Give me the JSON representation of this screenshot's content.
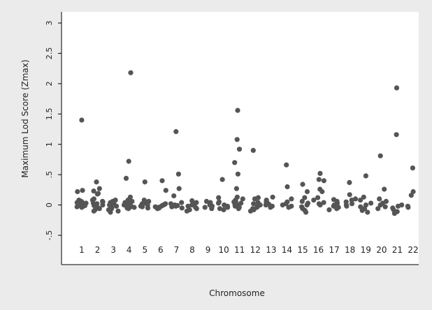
{
  "chart_data": {
    "type": "scatter",
    "xlabel": "Chromosome",
    "ylabel": "Maximum Lod Score (Zmax)",
    "ylim": [
      -0.5,
      3
    ],
    "yticks": [
      3,
      2.5,
      2,
      1.5,
      1,
      0.5,
      0,
      -0.5
    ],
    "ytick_labels": [
      "3",
      "2.5",
      "2",
      "1.5",
      "1",
      ".5",
      "0",
      "-.5"
    ],
    "categories": [
      "1",
      "2",
      "3",
      "4",
      "5",
      "6",
      "7",
      "8",
      "9",
      "10",
      "11",
      "12",
      "13",
      "14",
      "15",
      "16",
      "17",
      "18",
      "19",
      "20",
      "21",
      "22"
    ],
    "grid": false,
    "point_color": "#555555",
    "series": [
      {
        "chromosome": 1,
        "values": [
          1.4,
          0.24,
          0.22,
          0.08,
          0.06,
          0.05,
          0.04,
          0.03,
          0.02,
          0.01,
          0.0,
          -0.01,
          -0.02,
          -0.03,
          -0.04
        ]
      },
      {
        "chromosome": 2,
        "values": [
          0.38,
          0.27,
          0.23,
          0.19,
          0.18,
          0.1,
          0.08,
          0.06,
          0.05,
          0.03,
          0.02,
          0.0,
          -0.01,
          -0.03,
          -0.05,
          -0.06,
          -0.08,
          -0.1
        ]
      },
      {
        "chromosome": 3,
        "values": [
          0.08,
          0.06,
          0.04,
          0.03,
          0.02,
          0.0,
          -0.02,
          -0.04,
          -0.06,
          -0.08,
          -0.1,
          -0.12
        ]
      },
      {
        "chromosome": 4,
        "values": [
          2.18,
          0.72,
          0.44,
          0.13,
          0.08,
          0.06,
          0.05,
          0.04,
          0.03,
          0.02,
          0.01,
          0.0,
          -0.01,
          -0.02,
          -0.03,
          -0.04,
          -0.05,
          -0.06
        ]
      },
      {
        "chromosome": 5,
        "values": [
          0.38,
          0.08,
          0.06,
          0.04,
          0.03,
          0.02,
          0.01,
          0.0,
          -0.02,
          -0.03,
          -0.05
        ]
      },
      {
        "chromosome": 6,
        "values": [
          0.4,
          0.24,
          0.02,
          0.01,
          0.0,
          -0.01,
          -0.02,
          -0.03,
          -0.04,
          -0.05,
          -0.06
        ]
      },
      {
        "chromosome": 7,
        "values": [
          1.21,
          0.51,
          0.27,
          0.15,
          0.04,
          0.02,
          0.0,
          -0.01,
          -0.02,
          -0.03,
          -0.05
        ]
      },
      {
        "chromosome": 8,
        "values": [
          0.07,
          0.04,
          0.02,
          0.0,
          -0.02,
          -0.04,
          -0.06,
          -0.08,
          -0.1
        ]
      },
      {
        "chromosome": 9,
        "values": [
          0.06,
          0.04,
          0.02,
          0.0,
          -0.02,
          -0.04,
          -0.06
        ]
      },
      {
        "chromosome": 10,
        "values": [
          0.42,
          0.12,
          0.05,
          0.03,
          0.0,
          -0.02,
          -0.04,
          -0.06,
          -0.08
        ]
      },
      {
        "chromosome": 11,
        "values": [
          1.56,
          1.08,
          0.92,
          0.7,
          0.51,
          0.27,
          0.13,
          0.1,
          0.08,
          0.06,
          0.05,
          0.03,
          0.01,
          0.0,
          -0.02,
          -0.04,
          -0.06
        ]
      },
      {
        "chromosome": 12,
        "values": [
          0.9,
          0.12,
          0.1,
          0.04,
          0.02,
          0.0,
          -0.02,
          -0.04,
          -0.06,
          -0.08,
          -0.1
        ]
      },
      {
        "chromosome": 13,
        "values": [
          0.13,
          0.08,
          0.05,
          0.03,
          0.01,
          0.0,
          -0.02,
          -0.04
        ]
      },
      {
        "chromosome": 14,
        "values": [
          0.66,
          0.3,
          0.1,
          0.05,
          0.02,
          0.0,
          -0.02,
          -0.04
        ]
      },
      {
        "chromosome": 15,
        "values": [
          0.34,
          0.22,
          0.12,
          0.06,
          0.03,
          0.0,
          -0.03,
          -0.06,
          -0.09,
          -0.12
        ]
      },
      {
        "chromosome": 16,
        "values": [
          0.52,
          0.42,
          0.4,
          0.26,
          0.22,
          0.12,
          0.08,
          0.04,
          0.02,
          0.0
        ]
      },
      {
        "chromosome": 17,
        "values": [
          0.09,
          0.06,
          0.03,
          0.0,
          -0.02,
          -0.04,
          -0.06,
          -0.08
        ]
      },
      {
        "chromosome": 18,
        "values": [
          0.37,
          0.17,
          0.1,
          0.08,
          0.05,
          0.02,
          0.0,
          -0.02
        ]
      },
      {
        "chromosome": 19,
        "values": [
          0.48,
          0.13,
          0.08,
          0.03,
          0.0,
          -0.03,
          -0.06,
          -0.09,
          -0.12
        ]
      },
      {
        "chromosome": 20,
        "values": [
          0.81,
          0.26,
          0.1,
          0.06,
          0.03,
          0.0,
          -0.03,
          -0.06
        ]
      },
      {
        "chromosome": 21,
        "values": [
          1.93,
          1.16,
          0.0,
          -0.02,
          -0.05,
          -0.08,
          -0.11,
          -0.14
        ]
      },
      {
        "chromosome": 22,
        "values": [
          0.61,
          0.22,
          0.16,
          -0.02,
          -0.04
        ]
      }
    ]
  }
}
